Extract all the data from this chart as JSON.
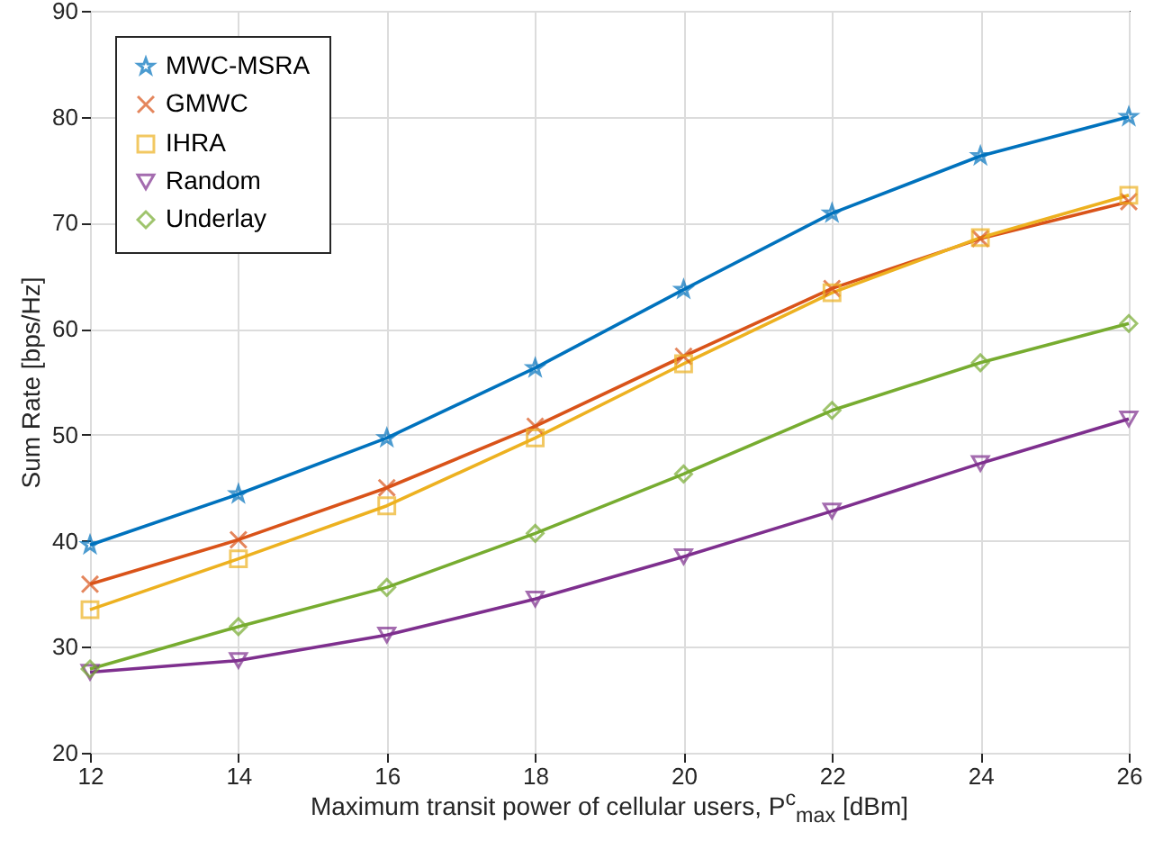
{
  "chart_data": {
    "type": "line",
    "xlabel": "Maximum transit power of cellular users, P$^{c}$$_{max}$ [dBm]",
    "ylabel": "Sum Rate [bps/Hz]",
    "x": [
      12,
      14,
      16,
      18,
      20,
      22,
      24,
      26
    ],
    "series": [
      {
        "name": "MWC-MSRA",
        "color": "#0072bd",
        "marker": "star",
        "values": [
          39.6,
          44.4,
          49.7,
          56.3,
          63.7,
          70.9,
          76.3,
          80.0
        ]
      },
      {
        "name": "GMWC",
        "color": "#d95319",
        "marker": "cross",
        "values": [
          35.9,
          40.1,
          45.0,
          50.8,
          57.4,
          63.8,
          68.5,
          72.0
        ]
      },
      {
        "name": "IHRA",
        "color": "#edb120",
        "marker": "square",
        "values": [
          33.5,
          38.3,
          43.3,
          49.7,
          56.7,
          63.4,
          68.6,
          72.6
        ]
      },
      {
        "name": "Random",
        "color": "#7e2f8e",
        "marker": "triangle",
        "values": [
          27.6,
          28.7,
          31.1,
          34.5,
          38.5,
          42.8,
          47.3,
          51.5
        ]
      },
      {
        "name": "Underlay",
        "color": "#77ac30",
        "marker": "diamond",
        "values": [
          27.9,
          31.9,
          35.6,
          40.7,
          46.3,
          52.3,
          56.8,
          60.5
        ]
      }
    ],
    "xlim": [
      12,
      26
    ],
    "xticks": [
      12,
      14,
      16,
      18,
      20,
      22,
      24,
      26
    ],
    "ylim": [
      20,
      90
    ],
    "yticks": [
      20,
      30,
      40,
      50,
      60,
      70,
      80,
      90
    ],
    "grid": true,
    "legend": "top left",
    "line_style": "solid"
  }
}
